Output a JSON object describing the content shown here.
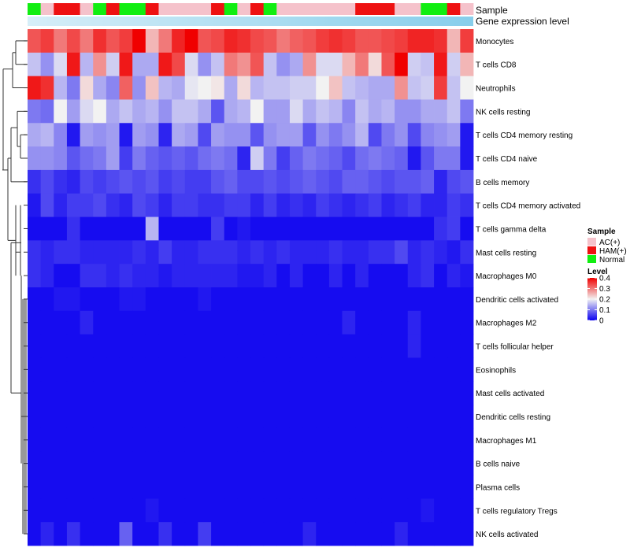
{
  "chart_data": {
    "type": "heatmap",
    "annotation_titles": {
      "sample": "Sample",
      "expression": "Gene expression level"
    },
    "rows": [
      "Monocytes",
      "T cells CD8",
      "Neutrophils",
      "NK cells resting",
      "T cells CD4 memory resting",
      "T cells CD4 naive",
      "B cells memory",
      "T cells CD4 memory activated",
      "T cells gamma delta",
      "Mast cells resting",
      "Macrophages M0",
      "Dendritic cells activated",
      "Macrophages M2",
      "T cells follicular helper",
      "Eosinophils",
      "Mast cells activated",
      "Dendritic cells resting",
      "Macrophages M1",
      "B cells naive",
      "Plasma cells",
      "T cells regulatory  Tregs",
      "NK cells activated"
    ],
    "sample_groups": [
      "Normal",
      "AC(+)",
      "HAM(+)",
      "HAM(+)",
      "AC(+)",
      "Normal",
      "HAM(+)",
      "Normal",
      "Normal",
      "HAM(+)",
      "AC(+)",
      "AC(+)",
      "AC(+)",
      "AC(+)",
      "HAM(+)",
      "Normal",
      "AC(+)",
      "HAM(+)",
      "Normal",
      "AC(+)",
      "AC(+)",
      "AC(+)",
      "AC(+)",
      "AC(+)",
      "AC(+)",
      "HAM(+)",
      "HAM(+)",
      "HAM(+)",
      "AC(+)",
      "AC(+)",
      "Normal",
      "Normal",
      "HAM(+)",
      "AC(+)"
    ],
    "values": [
      [
        0.33,
        0.35,
        0.3,
        0.34,
        0.3,
        0.36,
        0.33,
        0.35,
        0.4,
        0.25,
        0.3,
        0.37,
        0.4,
        0.33,
        0.34,
        0.37,
        0.36,
        0.34,
        0.33,
        0.3,
        0.32,
        0.33,
        0.35,
        0.36,
        0.35,
        0.33,
        0.33,
        0.34,
        0.35,
        0.37,
        0.37,
        0.36,
        0.25,
        0.35
      ],
      [
        0.16,
        0.12,
        0.18,
        0.38,
        0.15,
        0.28,
        0.17,
        0.38,
        0.14,
        0.14,
        0.38,
        0.34,
        0.18,
        0.12,
        0.16,
        0.3,
        0.28,
        0.33,
        0.16,
        0.12,
        0.14,
        0.28,
        0.18,
        0.18,
        0.25,
        0.3,
        0.22,
        0.33,
        0.4,
        0.17,
        0.16,
        0.38,
        0.17,
        0.25
      ],
      [
        0.38,
        0.36,
        0.15,
        0.1,
        0.22,
        0.14,
        0.11,
        0.32,
        0.12,
        0.24,
        0.15,
        0.14,
        0.19,
        0.2,
        0.21,
        0.14,
        0.22,
        0.15,
        0.16,
        0.16,
        0.17,
        0.17,
        0.2,
        0.24,
        0.16,
        0.15,
        0.14,
        0.14,
        0.28,
        0.16,
        0.17,
        0.35,
        0.16,
        0.2
      ],
      [
        0.1,
        0.09,
        0.2,
        0.13,
        0.18,
        0.2,
        0.14,
        0.16,
        0.14,
        0.15,
        0.12,
        0.16,
        0.16,
        0.14,
        0.07,
        0.14,
        0.15,
        0.2,
        0.13,
        0.13,
        0.18,
        0.14,
        0.16,
        0.15,
        0.11,
        0.16,
        0.14,
        0.15,
        0.12,
        0.12,
        0.14,
        0.14,
        0.16,
        0.1
      ],
      [
        0.14,
        0.15,
        0.11,
        0.02,
        0.13,
        0.12,
        0.13,
        0.02,
        0.13,
        0.12,
        0.03,
        0.14,
        0.13,
        0.06,
        0.13,
        0.12,
        0.12,
        0.07,
        0.12,
        0.13,
        0.13,
        0.07,
        0.12,
        0.1,
        0.12,
        0.15,
        0.06,
        0.1,
        0.12,
        0.06,
        0.11,
        0.12,
        0.13,
        0.02
      ],
      [
        0.12,
        0.12,
        0.11,
        0.07,
        0.09,
        0.1,
        0.13,
        0.05,
        0.1,
        0.08,
        0.07,
        0.08,
        0.07,
        0.09,
        0.1,
        0.09,
        0.03,
        0.17,
        0.1,
        0.05,
        0.08,
        0.1,
        0.09,
        0.08,
        0.06,
        0.09,
        0.1,
        0.09,
        0.08,
        0.02,
        0.07,
        0.1,
        0.1,
        0.02
      ],
      [
        0.04,
        0.06,
        0.04,
        0.03,
        0.06,
        0.05,
        0.06,
        0.07,
        0.06,
        0.07,
        0.05,
        0.06,
        0.05,
        0.05,
        0.07,
        0.08,
        0.06,
        0.06,
        0.07,
        0.06,
        0.07,
        0.08,
        0.07,
        0.06,
        0.08,
        0.08,
        0.07,
        0.06,
        0.07,
        0.07,
        0.08,
        0.03,
        0.06,
        0.07
      ],
      [
        0.02,
        0.06,
        0.03,
        0.05,
        0.05,
        0.06,
        0.04,
        0.03,
        0.06,
        0.05,
        0.03,
        0.05,
        0.05,
        0.04,
        0.04,
        0.05,
        0.05,
        0.03,
        0.05,
        0.03,
        0.04,
        0.03,
        0.05,
        0.04,
        0.03,
        0.04,
        0.05,
        0.03,
        0.04,
        0.05,
        0.03,
        0.03,
        0.05,
        0.04
      ],
      [
        0.01,
        0.01,
        0.01,
        0.04,
        0.01,
        0.01,
        0.01,
        0.01,
        0.01,
        0.15,
        0.01,
        0.01,
        0.01,
        0.01,
        0.05,
        0.01,
        0.02,
        0.01,
        0.01,
        0.01,
        0.01,
        0.01,
        0.01,
        0.01,
        0.01,
        0.01,
        0.01,
        0.01,
        0.01,
        0.01,
        0.01,
        0.04,
        0.05,
        0.01
      ],
      [
        0.04,
        0.03,
        0.04,
        0.04,
        0.03,
        0.03,
        0.03,
        0.03,
        0.04,
        0.03,
        0.05,
        0.03,
        0.03,
        0.04,
        0.04,
        0.04,
        0.03,
        0.04,
        0.03,
        0.04,
        0.03,
        0.03,
        0.03,
        0.04,
        0.03,
        0.03,
        0.04,
        0.04,
        0.06,
        0.03,
        0.04,
        0.03,
        0.02,
        0.04
      ],
      [
        0.04,
        0.03,
        0.01,
        0.01,
        0.04,
        0.04,
        0.03,
        0.04,
        0.03,
        0.03,
        0.02,
        0.03,
        0.03,
        0.03,
        0.03,
        0.03,
        0.02,
        0.02,
        0.03,
        0.01,
        0.03,
        0.01,
        0.01,
        0.03,
        0.01,
        0.03,
        0.01,
        0.01,
        0.01,
        0.03,
        0.04,
        0.01,
        0.03,
        0.02
      ],
      [
        0.01,
        0.01,
        0.02,
        0.02,
        0.01,
        0.01,
        0.01,
        0.02,
        0.02,
        0.01,
        0.01,
        0.01,
        0.01,
        0.02,
        0.01,
        0.01,
        0.01,
        0.01,
        0.01,
        0.01,
        0.01,
        0.01,
        0.01,
        0.01,
        0.01,
        0.01,
        0.01,
        0.01,
        0.01,
        0.01,
        0.01,
        0.01,
        0.01,
        0.01
      ],
      [
        0.01,
        0.01,
        0.01,
        0.01,
        0.03,
        0.01,
        0.01,
        0.01,
        0.01,
        0.01,
        0.01,
        0.01,
        0.01,
        0.01,
        0.01,
        0.01,
        0.01,
        0.01,
        0.01,
        0.01,
        0.01,
        0.01,
        0.01,
        0.01,
        0.03,
        0.01,
        0.01,
        0.01,
        0.01,
        0.03,
        0.01,
        0.01,
        0.01,
        0.01
      ],
      [
        0.01,
        0.01,
        0.01,
        0.01,
        0.01,
        0.01,
        0.01,
        0.01,
        0.01,
        0.01,
        0.01,
        0.01,
        0.01,
        0.01,
        0.01,
        0.01,
        0.01,
        0.01,
        0.01,
        0.01,
        0.01,
        0.01,
        0.01,
        0.01,
        0.01,
        0.01,
        0.01,
        0.01,
        0.01,
        0.03,
        0.01,
        0.01,
        0.01,
        0.01
      ],
      [
        0.01,
        0.01,
        0.01,
        0.01,
        0.01,
        0.01,
        0.01,
        0.01,
        0.01,
        0.01,
        0.01,
        0.01,
        0.01,
        0.01,
        0.01,
        0.01,
        0.01,
        0.01,
        0.01,
        0.01,
        0.01,
        0.01,
        0.01,
        0.01,
        0.01,
        0.01,
        0.01,
        0.01,
        0.01,
        0.01,
        0.01,
        0.01,
        0.01,
        0.01
      ],
      [
        0.01,
        0.01,
        0.01,
        0.01,
        0.01,
        0.01,
        0.01,
        0.01,
        0.01,
        0.01,
        0.01,
        0.01,
        0.01,
        0.01,
        0.01,
        0.01,
        0.01,
        0.01,
        0.01,
        0.01,
        0.01,
        0.01,
        0.01,
        0.01,
        0.01,
        0.01,
        0.01,
        0.01,
        0.01,
        0.01,
        0.01,
        0.01,
        0.01,
        0.01
      ],
      [
        0.01,
        0.01,
        0.01,
        0.01,
        0.01,
        0.01,
        0.01,
        0.01,
        0.01,
        0.01,
        0.01,
        0.01,
        0.01,
        0.01,
        0.01,
        0.01,
        0.01,
        0.01,
        0.01,
        0.01,
        0.01,
        0.01,
        0.01,
        0.01,
        0.01,
        0.01,
        0.01,
        0.01,
        0.01,
        0.01,
        0.01,
        0.01,
        0.01,
        0.01
      ],
      [
        0.01,
        0.01,
        0.01,
        0.01,
        0.01,
        0.01,
        0.01,
        0.01,
        0.01,
        0.01,
        0.01,
        0.01,
        0.01,
        0.01,
        0.01,
        0.01,
        0.01,
        0.01,
        0.01,
        0.01,
        0.01,
        0.01,
        0.01,
        0.01,
        0.01,
        0.01,
        0.01,
        0.01,
        0.01,
        0.01,
        0.01,
        0.01,
        0.01,
        0.01
      ],
      [
        0.01,
        0.01,
        0.01,
        0.01,
        0.01,
        0.01,
        0.01,
        0.01,
        0.01,
        0.01,
        0.01,
        0.01,
        0.01,
        0.01,
        0.01,
        0.01,
        0.01,
        0.01,
        0.01,
        0.01,
        0.01,
        0.01,
        0.01,
        0.01,
        0.01,
        0.01,
        0.01,
        0.01,
        0.01,
        0.01,
        0.01,
        0.01,
        0.01,
        0.01
      ],
      [
        0.01,
        0.01,
        0.01,
        0.01,
        0.01,
        0.01,
        0.01,
        0.01,
        0.01,
        0.01,
        0.01,
        0.01,
        0.01,
        0.01,
        0.01,
        0.01,
        0.01,
        0.01,
        0.01,
        0.01,
        0.01,
        0.01,
        0.01,
        0.01,
        0.01,
        0.01,
        0.01,
        0.01,
        0.01,
        0.01,
        0.01,
        0.01,
        0.01,
        0.01
      ],
      [
        0.01,
        0.01,
        0.01,
        0.01,
        0.01,
        0.01,
        0.01,
        0.01,
        0.01,
        0.02,
        0.01,
        0.01,
        0.01,
        0.01,
        0.01,
        0.01,
        0.01,
        0.01,
        0.01,
        0.01,
        0.01,
        0.01,
        0.01,
        0.01,
        0.01,
        0.01,
        0.01,
        0.01,
        0.01,
        0.01,
        0.02,
        0.01,
        0.01,
        0.01
      ],
      [
        0.01,
        0.03,
        0.01,
        0.04,
        0.01,
        0.01,
        0.01,
        0.08,
        0.01,
        0.01,
        0.04,
        0.01,
        0.01,
        0.05,
        0.01,
        0.01,
        0.01,
        0.01,
        0.01,
        0.01,
        0.01,
        0.03,
        0.01,
        0.01,
        0.01,
        0.01,
        0.01,
        0.01,
        0.03,
        0.01,
        0.01,
        0.01,
        0.01,
        0.01
      ]
    ],
    "legend": {
      "sample_title": "Sample",
      "groups": [
        "AC(+)",
        "HAM(+)",
        "Normal"
      ],
      "group_colors": [
        "#f5c2cb",
        "#ee1111",
        "#11ee11"
      ],
      "level_title": "Level",
      "level_ticks": [
        "0.4",
        "0.3",
        "0.2",
        "0.1",
        "0"
      ],
      "level_tick_values": [
        0.4,
        0.3,
        0.2,
        0.1,
        0
      ]
    },
    "color_scale": {
      "min": 0,
      "max": 0.4,
      "low": "#0a00f0",
      "mid": "#f2f2f2",
      "high": "#f00000",
      "expression_bar": "#87ceeb",
      "expression_bar_light": "#d6eef8"
    }
  }
}
